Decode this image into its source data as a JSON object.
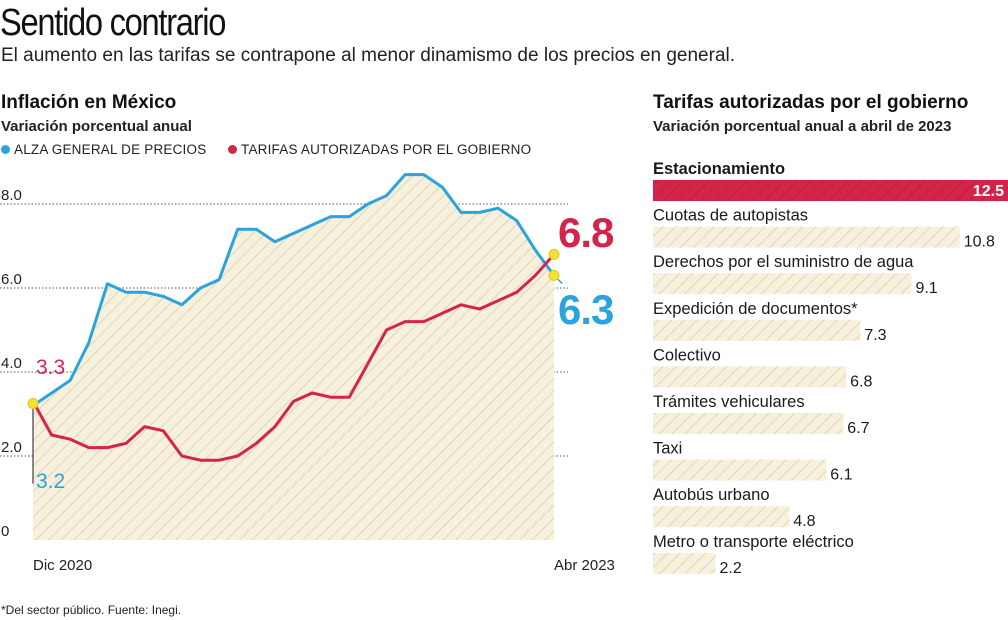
{
  "title": "Sentido contrario",
  "subtitle": "El aumento en las tarifas se contrapone al menor dinamismo de los precios en general.",
  "footnote": "*Del sector público. Fuente: Inegi.",
  "colors": {
    "blue": "#2ba3dc",
    "red": "#d5244a",
    "hatch_bg": "#f6f0dc",
    "hatch_line": "#d9cfb0",
    "marker": "#f5e132",
    "text": "#1a1a1a"
  },
  "chart_data": [
    {
      "type": "line",
      "title": "Inflación en México",
      "subtitle": "Variación porcentual anual",
      "x_start_label": "Dic 2020",
      "x_end_label": "Abr 2023",
      "ylim": [
        0,
        9
      ],
      "y_ticks": [
        "0",
        "2.0",
        "4.0",
        "6.0",
        "8.0"
      ],
      "series": [
        {
          "name": "ALZA GENERAL DE PRECIOS",
          "color": "#2ba3dc",
          "values": [
            3.2,
            3.5,
            3.8,
            4.7,
            6.1,
            5.9,
            5.9,
            5.8,
            5.6,
            6.0,
            6.2,
            7.4,
            7.4,
            7.1,
            7.3,
            7.5,
            7.7,
            7.7,
            8.0,
            8.2,
            8.7,
            8.7,
            8.4,
            7.8,
            7.8,
            7.9,
            7.6,
            6.9,
            6.3
          ],
          "start_label": "3.2",
          "end_label": "6.3"
        },
        {
          "name": "TARIFAS AUTORIZADAS POR EL GOBIERNO",
          "color": "#d5244a",
          "values": [
            3.3,
            2.5,
            2.4,
            2.2,
            2.2,
            2.3,
            2.7,
            2.6,
            2.0,
            1.9,
            1.9,
            2.0,
            2.3,
            2.7,
            3.3,
            3.5,
            3.4,
            3.4,
            4.2,
            5.0,
            5.2,
            5.2,
            5.4,
            5.6,
            5.5,
            5.7,
            5.9,
            6.3,
            6.8
          ],
          "start_label": "3.3",
          "end_label": "6.8"
        }
      ]
    },
    {
      "type": "bar",
      "orientation": "horizontal",
      "title": "Tarifas autorizadas por el gobierno",
      "subtitle": "Variación porcentual anual a abril de 2023",
      "categories": [
        "Estacionamiento",
        "Cuotas de autopistas",
        "Derechos por el suministro de agua",
        "Expedición de documentos*",
        "Colectivo",
        "Trámites vehiculares",
        "Taxi",
        "Autobús urbano",
        "Metro o transporte eléctrico"
      ],
      "values": [
        12.5,
        10.8,
        9.1,
        7.3,
        6.8,
        6.7,
        6.1,
        4.8,
        2.2
      ],
      "labels": [
        "12.5",
        "10.8",
        "9.1",
        "7.3",
        "6.8",
        "6.7",
        "6.1",
        "4.8",
        "2.2"
      ],
      "highlight_index": 0
    }
  ]
}
